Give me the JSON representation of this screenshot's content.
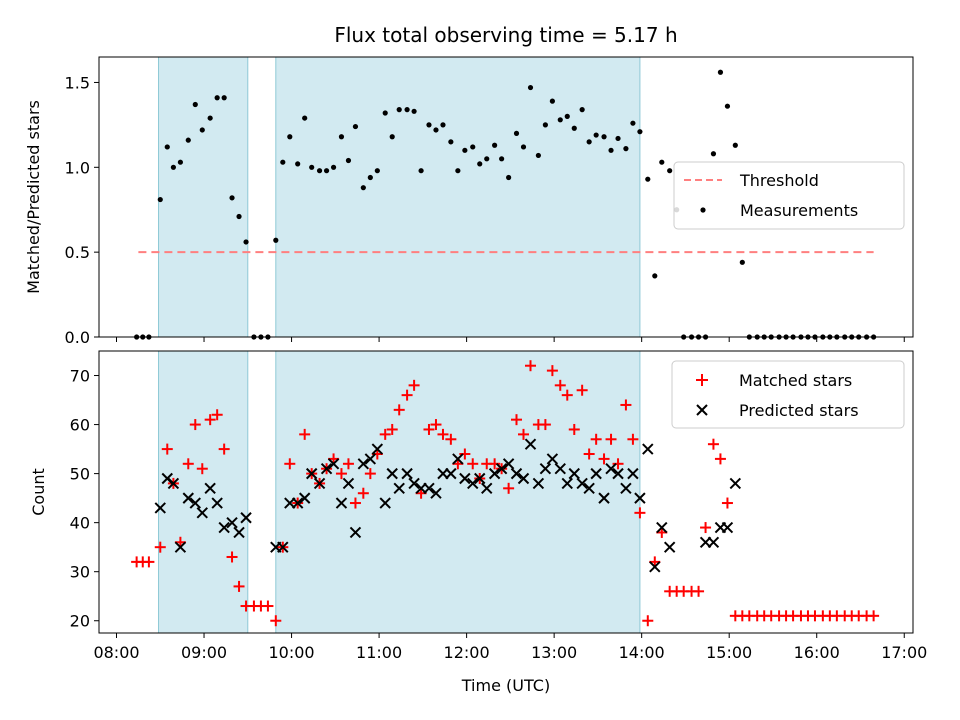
{
  "colors": {
    "span": "#add8e6",
    "threshold": "#ff7f7f",
    "measurement": "#000000",
    "matched": "#ff0000",
    "predicted": "#000000"
  },
  "chart_data": [
    {
      "type": "scatter",
      "title": "Flux total observing time = 5.17 h",
      "ylabel": "Matched/Predicted stars",
      "xlim": [
        7.8,
        17.1
      ],
      "ylim": [
        0,
        1.65
      ],
      "yticks": [
        0.0,
        0.5,
        1.0,
        1.5
      ],
      "ytick_labels": [
        "0.0",
        "0.5",
        "1.0",
        "1.5"
      ],
      "observing_spans": [
        [
          8.48,
          9.5
        ],
        [
          9.82,
          13.98
        ]
      ],
      "threshold": {
        "name": "Threshold",
        "value": 0.5,
        "x_range": [
          8.25,
          16.65
        ]
      },
      "legend": [
        "Threshold",
        "Measurements"
      ],
      "series": [
        {
          "name": "Measurements",
          "x": [
            8.23,
            8.3,
            8.37,
            8.5,
            8.58,
            8.65,
            8.73,
            8.82,
            8.9,
            8.98,
            9.07,
            9.15,
            9.23,
            9.32,
            9.4,
            9.48,
            9.57,
            9.65,
            9.73,
            9.82,
            9.9,
            9.98,
            10.07,
            10.15,
            10.23,
            10.32,
            10.4,
            10.48,
            10.57,
            10.65,
            10.73,
            10.82,
            10.9,
            10.98,
            11.07,
            11.15,
            11.23,
            11.32,
            11.4,
            11.48,
            11.57,
            11.65,
            11.73,
            11.82,
            11.9,
            11.98,
            12.07,
            12.15,
            12.23,
            12.32,
            12.4,
            12.48,
            12.57,
            12.65,
            12.73,
            12.82,
            12.9,
            12.98,
            13.07,
            13.15,
            13.23,
            13.32,
            13.4,
            13.48,
            13.57,
            13.65,
            13.73,
            13.82,
            13.9,
            13.98,
            14.07,
            14.15,
            14.23,
            14.32,
            14.4,
            14.48,
            14.57,
            14.65,
            14.73,
            14.82,
            14.9,
            14.98,
            15.07,
            15.15,
            15.23,
            15.32,
            15.4,
            15.48,
            15.57,
            15.65,
            15.73,
            15.82,
            15.9,
            15.98,
            16.07,
            16.15,
            16.23,
            16.32,
            16.4,
            16.48,
            16.57,
            16.65
          ],
          "y": [
            0,
            0,
            0,
            0.81,
            1.12,
            1.0,
            1.03,
            1.16,
            1.37,
            1.22,
            1.29,
            1.41,
            1.41,
            0.82,
            0.71,
            0.56,
            0,
            0,
            0,
            0.57,
            1.03,
            1.18,
            1.02,
            1.29,
            1.0,
            0.98,
            0.98,
            1.0,
            1.18,
            1.04,
            1.24,
            0.88,
            0.94,
            0.98,
            1.32,
            1.18,
            1.34,
            1.34,
            1.33,
            0.98,
            1.25,
            1.22,
            1.25,
            1.15,
            0.98,
            1.1,
            1.12,
            1.02,
            1.05,
            1.13,
            1.05,
            0.94,
            1.2,
            1.12,
            1.47,
            1.07,
            1.25,
            1.39,
            1.28,
            1.3,
            1.23,
            1.34,
            1.15,
            1.19,
            1.18,
            1.1,
            1.17,
            1.11,
            1.26,
            1.21,
            0.93,
            0.36,
            1.03,
            0.98,
            0.75,
            0,
            0,
            0,
            0,
            1.08,
            1.56,
            1.36,
            1.13,
            0.44,
            0,
            0,
            0,
            0,
            0,
            0,
            0,
            0,
            0,
            0,
            0,
            0,
            0,
            0,
            0,
            0,
            0,
            0
          ]
        }
      ]
    },
    {
      "type": "scatter",
      "xlabel": "Time (UTC)",
      "ylabel": "Count",
      "xlim": [
        7.8,
        17.1
      ],
      "ylim": [
        17.5,
        75
      ],
      "yticks": [
        20,
        30,
        40,
        50,
        60,
        70
      ],
      "ytick_labels": [
        "20",
        "30",
        "40",
        "50",
        "60",
        "70"
      ],
      "xticks": [
        8,
        9,
        10,
        11,
        12,
        13,
        14,
        15,
        16,
        17
      ],
      "xtick_labels": [
        "08:00",
        "09:00",
        "10:00",
        "11:00",
        "12:00",
        "13:00",
        "14:00",
        "15:00",
        "16:00",
        "17:00"
      ],
      "observing_spans": [
        [
          8.48,
          9.5
        ],
        [
          9.82,
          13.98
        ]
      ],
      "legend": [
        "Matched stars",
        "Predicted stars"
      ],
      "series": [
        {
          "name": "Matched stars",
          "marker": "+",
          "x": [
            8.23,
            8.3,
            8.37,
            8.5,
            8.58,
            8.65,
            8.73,
            8.82,
            8.9,
            8.98,
            9.07,
            9.15,
            9.23,
            9.32,
            9.4,
            9.48,
            9.57,
            9.65,
            9.73,
            9.82,
            9.9,
            9.98,
            10.07,
            10.15,
            10.23,
            10.32,
            10.4,
            10.48,
            10.57,
            10.65,
            10.73,
            10.82,
            10.9,
            10.98,
            11.07,
            11.15,
            11.23,
            11.32,
            11.4,
            11.48,
            11.57,
            11.65,
            11.73,
            11.82,
            11.9,
            11.98,
            12.07,
            12.15,
            12.23,
            12.32,
            12.4,
            12.48,
            12.57,
            12.65,
            12.73,
            12.82,
            12.9,
            12.98,
            13.07,
            13.15,
            13.23,
            13.32,
            13.4,
            13.48,
            13.57,
            13.65,
            13.73,
            13.82,
            13.9,
            13.98,
            14.07,
            14.15,
            14.23,
            14.32,
            14.4,
            14.48,
            14.57,
            14.65,
            14.73,
            14.82,
            14.9,
            14.98,
            15.07,
            15.15,
            15.23,
            15.32,
            15.4,
            15.48,
            15.57,
            15.65,
            15.73,
            15.82,
            15.9,
            15.98,
            16.07,
            16.15,
            16.23,
            16.32,
            16.4,
            16.48,
            16.57,
            16.65
          ],
          "y": [
            32,
            32,
            32,
            35,
            55,
            48,
            36,
            52,
            60,
            51,
            61,
            62,
            55,
            33,
            27,
            23,
            23,
            23,
            23,
            20,
            35,
            52,
            44,
            58,
            50,
            48,
            51,
            53,
            50,
            52,
            44,
            46,
            50,
            54,
            58,
            59,
            63,
            66,
            68,
            46,
            59,
            60,
            58,
            57,
            52,
            54,
            52,
            49,
            52,
            52,
            51,
            47,
            61,
            58,
            72,
            60,
            60,
            71,
            68,
            66,
            59,
            67,
            54,
            57,
            53,
            57,
            52,
            64,
            57,
            42,
            20,
            32,
            38,
            26,
            26,
            26,
            26,
            26,
            39,
            56,
            53,
            44,
            21,
            21,
            21,
            21,
            21,
            21,
            21,
            21,
            21,
            21,
            21,
            21,
            21,
            21,
            21,
            21,
            21,
            21,
            21,
            21
          ]
        },
        {
          "name": "Predicted stars",
          "marker": "x",
          "x": [
            8.5,
            8.58,
            8.65,
            8.73,
            8.82,
            8.9,
            8.98,
            9.07,
            9.15,
            9.23,
            9.32,
            9.4,
            9.48,
            9.82,
            9.9,
            9.98,
            10.07,
            10.15,
            10.23,
            10.32,
            10.4,
            10.48,
            10.57,
            10.65,
            10.73,
            10.82,
            10.9,
            10.98,
            11.07,
            11.15,
            11.23,
            11.32,
            11.4,
            11.48,
            11.57,
            11.65,
            11.73,
            11.82,
            11.9,
            11.98,
            12.07,
            12.15,
            12.23,
            12.32,
            12.4,
            12.48,
            12.57,
            12.65,
            12.73,
            12.82,
            12.9,
            12.98,
            13.07,
            13.15,
            13.23,
            13.32,
            13.4,
            13.48,
            13.57,
            13.65,
            13.73,
            13.82,
            13.9,
            13.98,
            14.07,
            14.15,
            14.23,
            14.32,
            14.73,
            14.82,
            14.9,
            14.98,
            15.07
          ],
          "y": [
            43,
            49,
            48,
            35,
            45,
            44,
            42,
            47,
            44,
            39,
            40,
            38,
            41,
            35,
            35,
            44,
            44,
            45,
            50,
            48,
            51,
            52,
            44,
            48,
            38,
            52,
            53,
            55,
            44,
            50,
            47,
            50,
            48,
            47,
            47,
            46,
            50,
            50,
            53,
            49,
            48,
            49,
            47,
            50,
            51,
            52,
            50,
            49,
            56,
            48,
            51,
            53,
            51,
            48,
            50,
            48,
            47,
            50,
            45,
            51,
            50,
            47,
            50,
            45,
            55,
            31,
            39,
            35,
            36,
            36,
            39,
            39,
            48
          ]
        }
      ]
    }
  ]
}
